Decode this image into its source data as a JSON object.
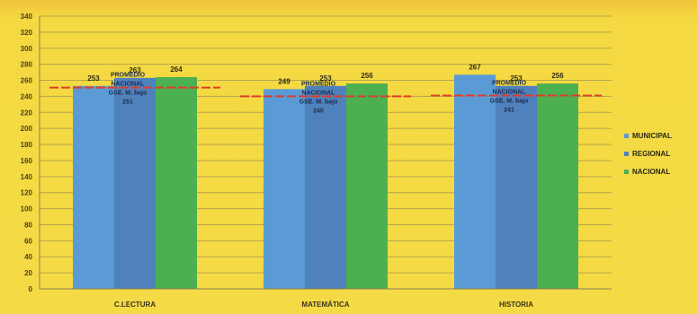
{
  "chart_data": {
    "type": "bar",
    "categories": [
      "C.LECTURA",
      "MATEMÁTICA",
      "HISTORIA"
    ],
    "series": [
      {
        "name": "MUNICIPAL",
        "values": [
          253,
          249,
          267
        ],
        "labels": [
          "253",
          "249",
          "267"
        ],
        "color": "#5b9bd5"
      },
      {
        "name": "REGIONAL",
        "values": [
          263,
          253,
          253
        ],
        "labels": [
          "263",
          "253",
          "253"
        ],
        "color": "#4f81bd"
      },
      {
        "name": "NACIONAL",
        "values": [
          264,
          256,
          256
        ],
        "labels": [
          "264",
          "256",
          "256"
        ],
        "color": "#4caf50"
      }
    ],
    "yticks": [
      "0",
      "20",
      "40",
      "60",
      "80",
      "100",
      "120",
      "140",
      "160",
      "180",
      "200",
      "220",
      "240",
      "260",
      "280",
      "300",
      "320",
      "340"
    ],
    "ylim": [
      0,
      340
    ],
    "reference_lines": [
      {
        "value": 251,
        "color": "#e03c28",
        "label_lines": [
          "PROMEDIO",
          "NACIONAL",
          "GSE. M. bajo",
          "251"
        ]
      },
      {
        "value": 240,
        "color": "#e03c28",
        "label_lines": [
          "PROMEDIO",
          "NACIONAL",
          "GSE. M. bajo",
          "240"
        ]
      },
      {
        "value": 241,
        "color": "#e03c28",
        "label_lines": [
          "PROMEDIO",
          "NACIONAL",
          "GSE. M. bajo",
          "241"
        ]
      }
    ],
    "legend_position": "right",
    "grid": true,
    "title": "",
    "xlabel": "",
    "ylabel": ""
  }
}
